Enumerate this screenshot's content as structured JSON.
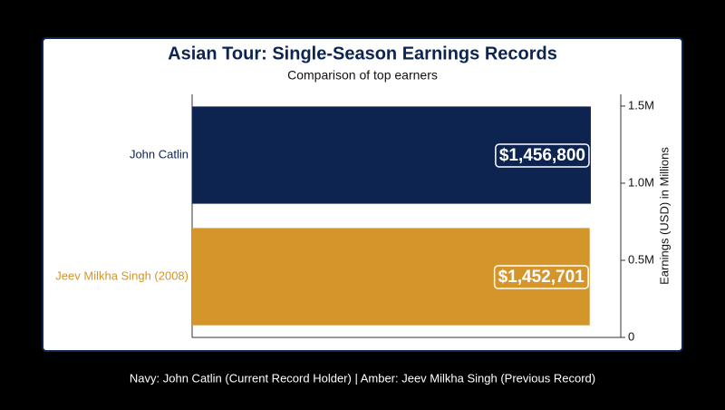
{
  "chart_data": {
    "type": "bar",
    "orientation": "horizontal",
    "title": "Asian Tour: Single-Season Earnings Records",
    "subtitle": "Comparison of top earners",
    "y_label": "Earnings (USD) in Millions",
    "categories": [
      "John Catlin",
      "Jeev Milkha Singh (2008)"
    ],
    "values": [
      1456800,
      1452701
    ],
    "value_labels": [
      "$1,456,800",
      "$1,452,701"
    ],
    "colors": [
      "#0d2451",
      "#d4952a"
    ],
    "xlim": [
      0,
      1500000
    ],
    "ylim": [
      0,
      1576000
    ],
    "yticks": [
      0,
      {
        "value": 500000,
        "label": "0.5M"
      },
      {
        "value": 1000000,
        "label": "1.0M"
      },
      {
        "value": 1500000,
        "label": "1.5M"
      }
    ],
    "footnote": "Navy: John Catlin (Current Record Holder) | Amber: Jeev Milkha Singh (Previous Record)"
  }
}
